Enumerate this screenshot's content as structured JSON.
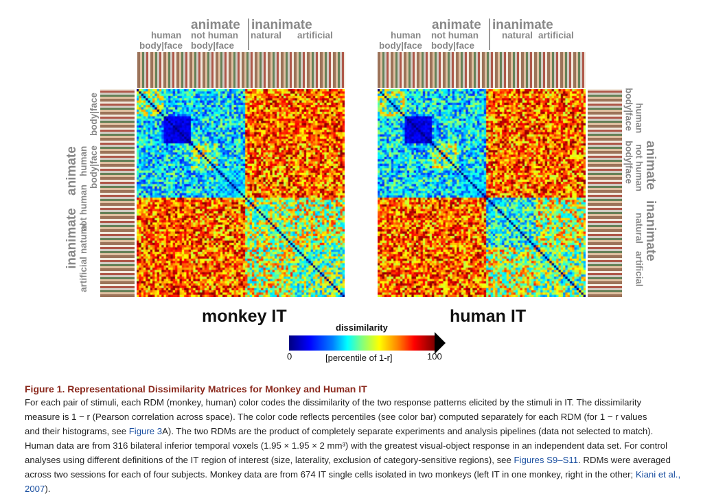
{
  "category_labels": {
    "animate": "animate",
    "inanimate": "inanimate",
    "human": "human",
    "not_human": "not human",
    "natural": "natural",
    "artificial": "artificial",
    "body_face_1": "body|face",
    "body_face_2": "body|face"
  },
  "panels": {
    "left_title": "monkey IT",
    "right_title": "human IT"
  },
  "colorbar": {
    "title": "dissimilarity",
    "min_label": "0",
    "max_label": "100",
    "subtitle": "[percentile of 1-r]",
    "colormap": "jet"
  },
  "caption": {
    "title": "Figure 1. Representational Dissimilarity Matrices for Monkey and Human IT",
    "line1": "For each pair of stimuli, each RDM (monkey, human) color codes the dissimilarity of the two response patterns elicited by the stimuli in IT. The dissimilarity",
    "line2": "measure is 1 − r (Pearson correlation across space). The color code reflects percentiles (see color bar) computed separately for each RDM (for 1 − r values",
    "line3a": "and their histograms, see ",
    "line3_link": "Figure 3",
    "line3b": "A). The two RDMs are the product of completely separate experiments and analysis pipelines (data not selected to match).",
    "line4": "Human data are from 316 bilateral inferior temporal voxels (1.95 × 1.95 × 2 mm³) with the greatest visual-object response in an independent data set. For control",
    "line5a": "analyses using different definitions of the IT region of interest (size, laterality, exclusion of category-sensitive regions), see ",
    "line5_link": "Figures S9–S11",
    "line5b": ". RDMs were averaged",
    "line6a": "across two sessions for each of four subjects. Monkey data are from 674 IT single cells isolated in two monkeys (left IT in one monkey, right in the other; ",
    "line6_link": "Kiani et al.,",
    "line7_link": "2007",
    "line7b": ")."
  },
  "accent_colors": {
    "caption_title": "#8b2a1e",
    "link": "#1a4fa0"
  }
}
